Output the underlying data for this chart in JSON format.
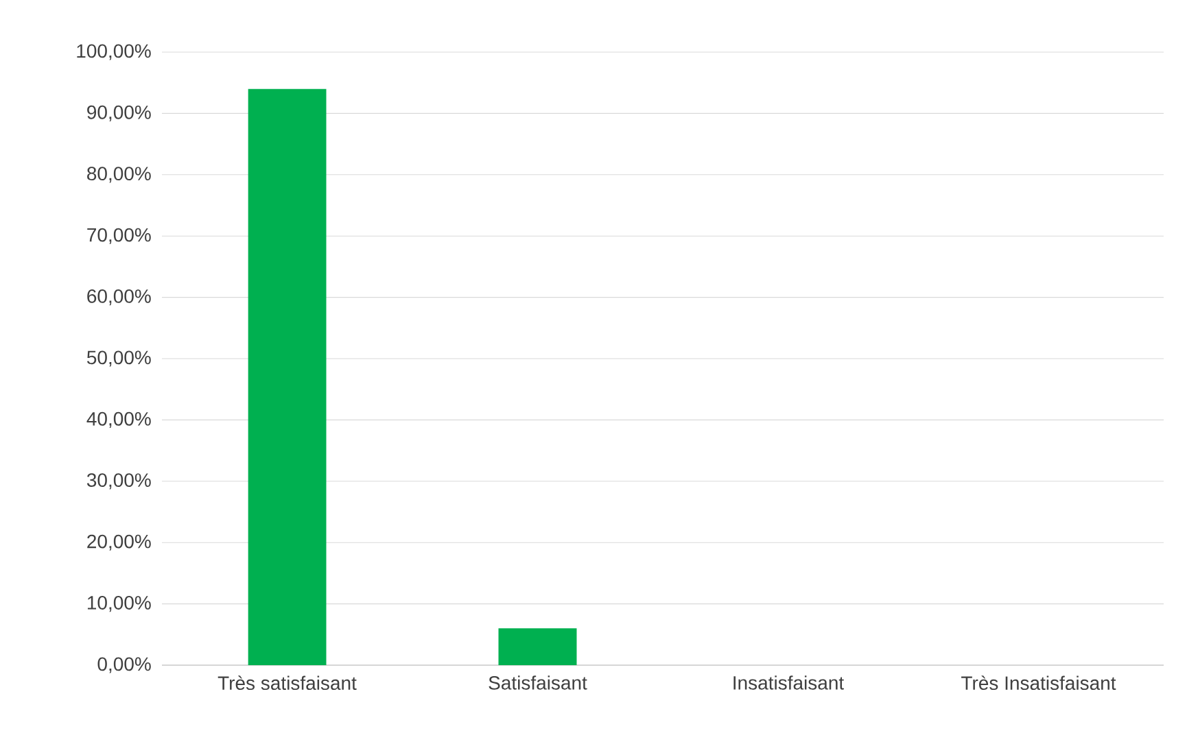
{
  "chart_data": {
    "type": "bar",
    "categories": [
      "Très satisfaisant",
      "Satisfaisant",
      "Insatisfaisant",
      "Très Insatisfaisant"
    ],
    "values": [
      94,
      6,
      0,
      0
    ],
    "color": "#00b050",
    "ylim": [
      0,
      100
    ],
    "yticks": [
      {
        "value": 0,
        "label": "0,00%"
      },
      {
        "value": 10,
        "label": "10,00%"
      },
      {
        "value": 20,
        "label": "20,00%"
      },
      {
        "value": 30,
        "label": "30,00%"
      },
      {
        "value": 40,
        "label": "40,00%"
      },
      {
        "value": 50,
        "label": "50,00%"
      },
      {
        "value": 60,
        "label": "60,00%"
      },
      {
        "value": 70,
        "label": "70,00%"
      },
      {
        "value": 80,
        "label": "80,00%"
      },
      {
        "value": 90,
        "label": "90,00%"
      },
      {
        "value": 100,
        "label": "100,00%"
      }
    ],
    "grid": "y"
  }
}
